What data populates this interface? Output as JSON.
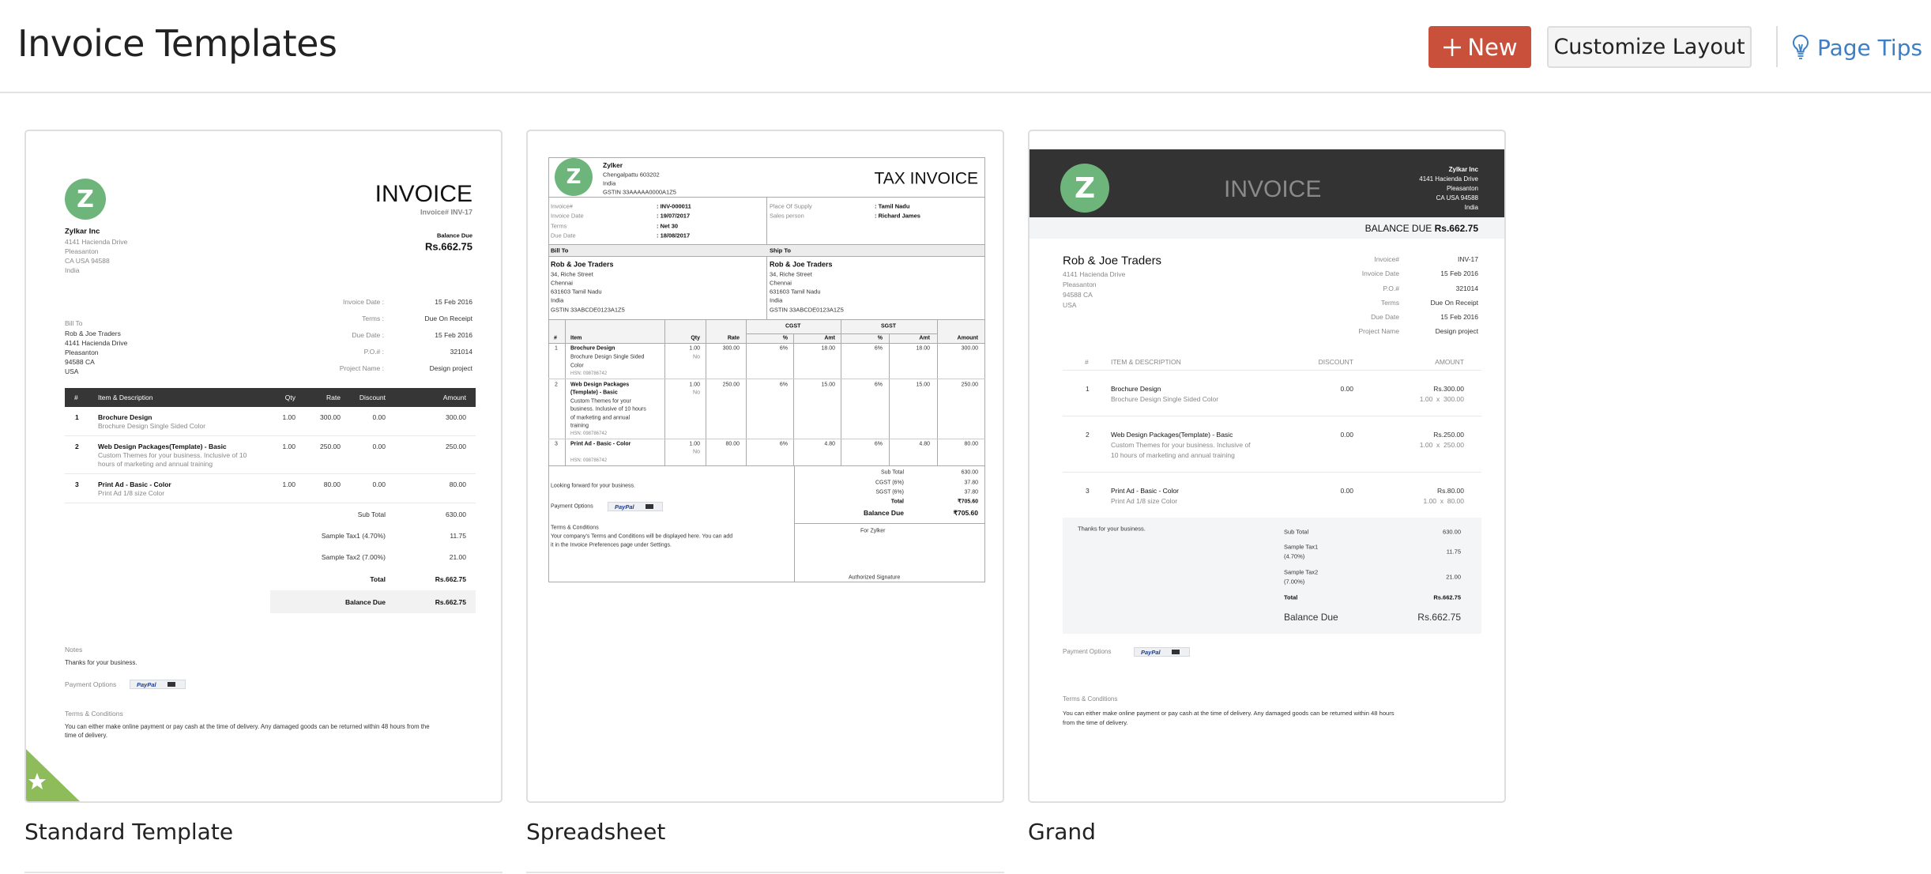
{
  "header": {
    "title": "Invoice Templates",
    "new_label": "New",
    "customize_label": "Customize Layout",
    "page_tips_label": "Page Tips"
  },
  "colors": {
    "primary": "#c9503a",
    "link": "#3d7fc4",
    "logo": "#6db57a",
    "default_badge": "#8fbc5a",
    "dark_header": "#333333"
  },
  "standard": {
    "label": "Standard Template",
    "logo_letter": "Z",
    "title": "INVOICE",
    "invoice_no": "Invoice# INV-17",
    "balance_label": "Balance Due",
    "balance": "Rs.662.75",
    "company": {
      "name": "Zylkar Inc",
      "lines": [
        "4141 Hacienda Drive",
        "Pleasanton",
        "CA USA 94588",
        "India"
      ]
    },
    "bill_to_label": "Bill To",
    "bill_to": [
      "Rob & Joe Traders",
      "4141 Hacienda Drive",
      "Pleasanton",
      "94588 CA",
      "USA"
    ],
    "meta": [
      {
        "label": "Invoice Date :",
        "value": "15 Feb 2016"
      },
      {
        "label": "Terms :",
        "value": "Due On Receipt"
      },
      {
        "label": "Due Date :",
        "value": "15 Feb 2016"
      },
      {
        "label": "P.O.# :",
        "value": "321014"
      },
      {
        "label": "Project Name :",
        "value": "Design project"
      }
    ],
    "columns": [
      "#",
      "Item & Description",
      "Qty",
      "Rate",
      "Discount",
      "Amount"
    ],
    "items": [
      {
        "no": "1",
        "name": "Brochure Design",
        "desc": [
          "Brochure Design Single Sided Color"
        ],
        "qty": "1.00",
        "rate": "300.00",
        "discount": "0.00",
        "amount": "300.00"
      },
      {
        "no": "2",
        "name": "Web Design Packages(Template) - Basic",
        "desc": [
          "Custom Themes for your business. Inclusive of 10",
          "hours of marketing and annual training"
        ],
        "qty": "1.00",
        "rate": "250.00",
        "discount": "0.00",
        "amount": "250.00"
      },
      {
        "no": "3",
        "name": "Print Ad - Basic - Color",
        "desc": [
          "Print Ad 1/8 size Color"
        ],
        "qty": "1.00",
        "rate": "80.00",
        "discount": "0.00",
        "amount": "80.00"
      }
    ],
    "totals": [
      {
        "label": "Sub Total",
        "value": "630.00"
      },
      {
        "label": "Sample Tax1 (4.70%)",
        "value": "11.75"
      },
      {
        "label": "Sample Tax2 (7.00%)",
        "value": "21.00"
      },
      {
        "label": "Total",
        "value": "Rs.662.75"
      }
    ],
    "balance_due": {
      "label": "Balance Due",
      "value": "Rs.662.75"
    },
    "notes_label": "Notes",
    "notes": "Thanks for your business.",
    "payment_label": "Payment Options",
    "paypal": "PayPal",
    "terms_label": "Terms & Conditions",
    "terms": [
      "You can either make online payment or pay cash at the time of delivery. Any damaged goods can be returned within 48 hours from the",
      "time of delivery."
    ]
  },
  "spreadsheet": {
    "label": "Spreadsheet",
    "logo_letter": "Z",
    "title": "TAX INVOICE",
    "company": {
      "name": "Zylker",
      "lines": [
        "Chengalpattu  603202",
        "India",
        "GSTIN 33AAAAA0000A1Z5"
      ]
    },
    "meta_left": [
      {
        "label": "Invoice#",
        "value": ": INV-000011"
      },
      {
        "label": "Invoice Date",
        "value": ": 19/07/2017"
      },
      {
        "label": "Terms",
        "value": ": Net 30"
      },
      {
        "label": "Due Date",
        "value": ": 18/08/2017"
      }
    ],
    "meta_right": [
      {
        "label": "Place Of Supply",
        "value": ": Tamil Nadu"
      },
      {
        "label": "Sales person",
        "value": ": Richard James"
      }
    ],
    "bill_to_label": "Bill To",
    "ship_to_label": "Ship To",
    "bill_to": [
      "Rob & Joe Traders",
      "34, Riche Street",
      "Chennai",
      "631603 Tamil Nadu",
      "India",
      "GSTIN 33ABCDE0123A1Z5"
    ],
    "ship_to": [
      "Rob & Joe Traders",
      "34, Riche Street",
      "Chennai",
      "631603 Tamil Nadu",
      "India",
      "GSTIN 33ABCDE0123A1Z5"
    ],
    "columns": {
      "no": "#",
      "item": "Item",
      "qty": "Qty",
      "rate": "Rate",
      "cgst": "CGST",
      "sgst": "SGST",
      "pct": "%",
      "amt": "Amt",
      "amount": "Amount"
    },
    "items": [
      {
        "no": "1",
        "name": [
          "Brochure Design"
        ],
        "desc": [
          "Brochure Design Single Sided",
          "Color"
        ],
        "hsn": "HSN: 098786742",
        "qty": "1.00",
        "unit": "No",
        "rate": "300.00",
        "cgst_pct": "6%",
        "cgst_amt": "18.00",
        "sgst_pct": "6%",
        "sgst_amt": "18.00",
        "amount": "300.00"
      },
      {
        "no": "2",
        "name": [
          "Web Design Packages",
          "(Template) - Basic"
        ],
        "desc": [
          "Custom Themes for your",
          "business. Inclusive of 10 hours",
          "of marketing and annual",
          "training"
        ],
        "hsn": "HSN: 098786742",
        "qty": "1.00",
        "unit": "No",
        "rate": "250.00",
        "cgst_pct": "6%",
        "cgst_amt": "15.00",
        "sgst_pct": "6%",
        "sgst_amt": "15.00",
        "amount": "250.00"
      },
      {
        "no": "3",
        "name": [
          "Print Ad - Basic - Color"
        ],
        "desc": [],
        "hsn": "HSN: 098786742",
        "qty": "1.00",
        "unit": "No",
        "rate": "80.00",
        "cgst_pct": "6%",
        "cgst_amt": "4.80",
        "sgst_pct": "6%",
        "sgst_amt": "4.80",
        "amount": "80.00"
      }
    ],
    "notes": "Looking forward for your business.",
    "payment_label": "Payment Options",
    "paypal": "PayPal",
    "terms_label": "Terms & Conditions",
    "terms": [
      "Your company's Terms and Conditions will be displayed here. You can add",
      "it in the Invoice Preferences page under Settings."
    ],
    "totals": [
      {
        "label": "Sub Total",
        "value": "630.00"
      },
      {
        "label": "CGST (6%)",
        "value": "37.80"
      },
      {
        "label": "SGST (6%)",
        "value": "37.80"
      },
      {
        "label": "Total",
        "value": "₹705.60"
      }
    ],
    "balance_due": {
      "label": "Balance Due",
      "value": "₹705.60"
    },
    "for_company": "For Zylker",
    "signature": "Authorized Signature"
  },
  "grand": {
    "label": "Grand",
    "logo_letter": "Z",
    "title": "INVOICE",
    "company": {
      "name": "Zylkar Inc",
      "lines": [
        "4141 Hacienda Drive",
        "Pleasanton",
        "CA USA 94588",
        "India"
      ]
    },
    "balance_label": "BALANCE DUE",
    "balance": "Rs.662.75",
    "customer": {
      "name": "Rob & Joe Traders",
      "lines": [
        "4141 Hacienda Drive",
        "Pleasanton",
        "94588 CA",
        "USA"
      ]
    },
    "meta": [
      {
        "label": "Invoice#",
        "value": "INV-17"
      },
      {
        "label": "Invoice Date",
        "value": "15 Feb 2016"
      },
      {
        "label": "P.O.#",
        "value": "321014"
      },
      {
        "label": "Terms",
        "value": "Due On Receipt"
      },
      {
        "label": "Due Date",
        "value": "15 Feb 2016"
      },
      {
        "label": "Project Name",
        "value": "Design project"
      }
    ],
    "columns": [
      "#",
      "ITEM & DESCRIPTION",
      "DISCOUNT",
      "AMOUNT"
    ],
    "items": [
      {
        "no": "1",
        "name": "Brochure Design",
        "desc": [
          "Brochure Design Single Sided Color"
        ],
        "discount": "0.00",
        "amount": "Rs.300.00",
        "calc": "1.00  x  300.00"
      },
      {
        "no": "2",
        "name": "Web Design Packages(Template) - Basic",
        "desc": [
          "Custom Themes for your business. Inclusive of",
          "10 hours of marketing and annual training"
        ],
        "discount": "0.00",
        "amount": "Rs.250.00",
        "calc": "1.00  x  250.00"
      },
      {
        "no": "3",
        "name": "Print Ad - Basic - Color",
        "desc": [
          "Print Ad 1/8 size Color"
        ],
        "discount": "0.00",
        "amount": "Rs.80.00",
        "calc": "1.00  x  80.00"
      }
    ],
    "notes": "Thanks for your business.",
    "totals": [
      {
        "label": [
          "Sub Total"
        ],
        "value": "630.00"
      },
      {
        "label": [
          "Sample Tax1",
          "(4.70%)"
        ],
        "value": "11.75"
      },
      {
        "label": [
          "Sample Tax2",
          "(7.00%)"
        ],
        "value": "21.00"
      },
      {
        "label": [
          "Total"
        ],
        "value": "Rs.662.75"
      }
    ],
    "balance_due": {
      "label": "Balance Due",
      "value": "Rs.662.75"
    },
    "payment_label": "Payment Options",
    "paypal": "PayPal",
    "terms_label": "Terms & Conditions",
    "terms": [
      "You can either make online payment or pay cash at the time of delivery. Any damaged goods can be returned within 48 hours",
      "from the time of delivery."
    ]
  }
}
